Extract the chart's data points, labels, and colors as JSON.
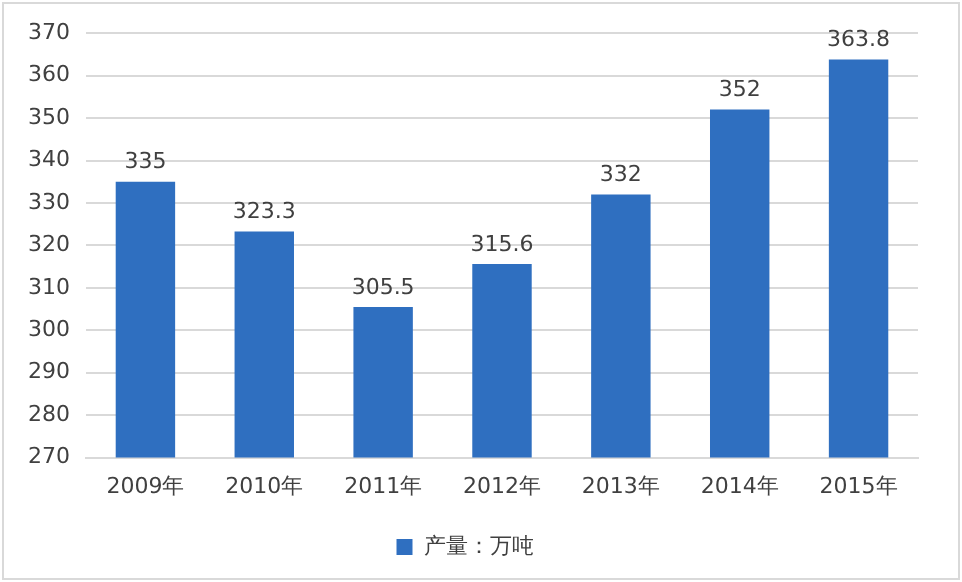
{
  "chart_data": {
    "type": "bar",
    "categories": [
      "2009年",
      "2010年",
      "2011年",
      "2012年",
      "2013年",
      "2014年",
      "2015年"
    ],
    "series": [
      {
        "name": "产量：万吨",
        "color": "#2f6fc0",
        "values": [
          335,
          323.3,
          305.5,
          315.6,
          332,
          352,
          363.8
        ]
      }
    ],
    "ylim": [
      270,
      370
    ],
    "yticks": [
      270,
      280,
      290,
      300,
      310,
      320,
      330,
      340,
      350,
      360,
      370
    ],
    "grid": "y",
    "legend": "bottom",
    "data_labels": true
  }
}
